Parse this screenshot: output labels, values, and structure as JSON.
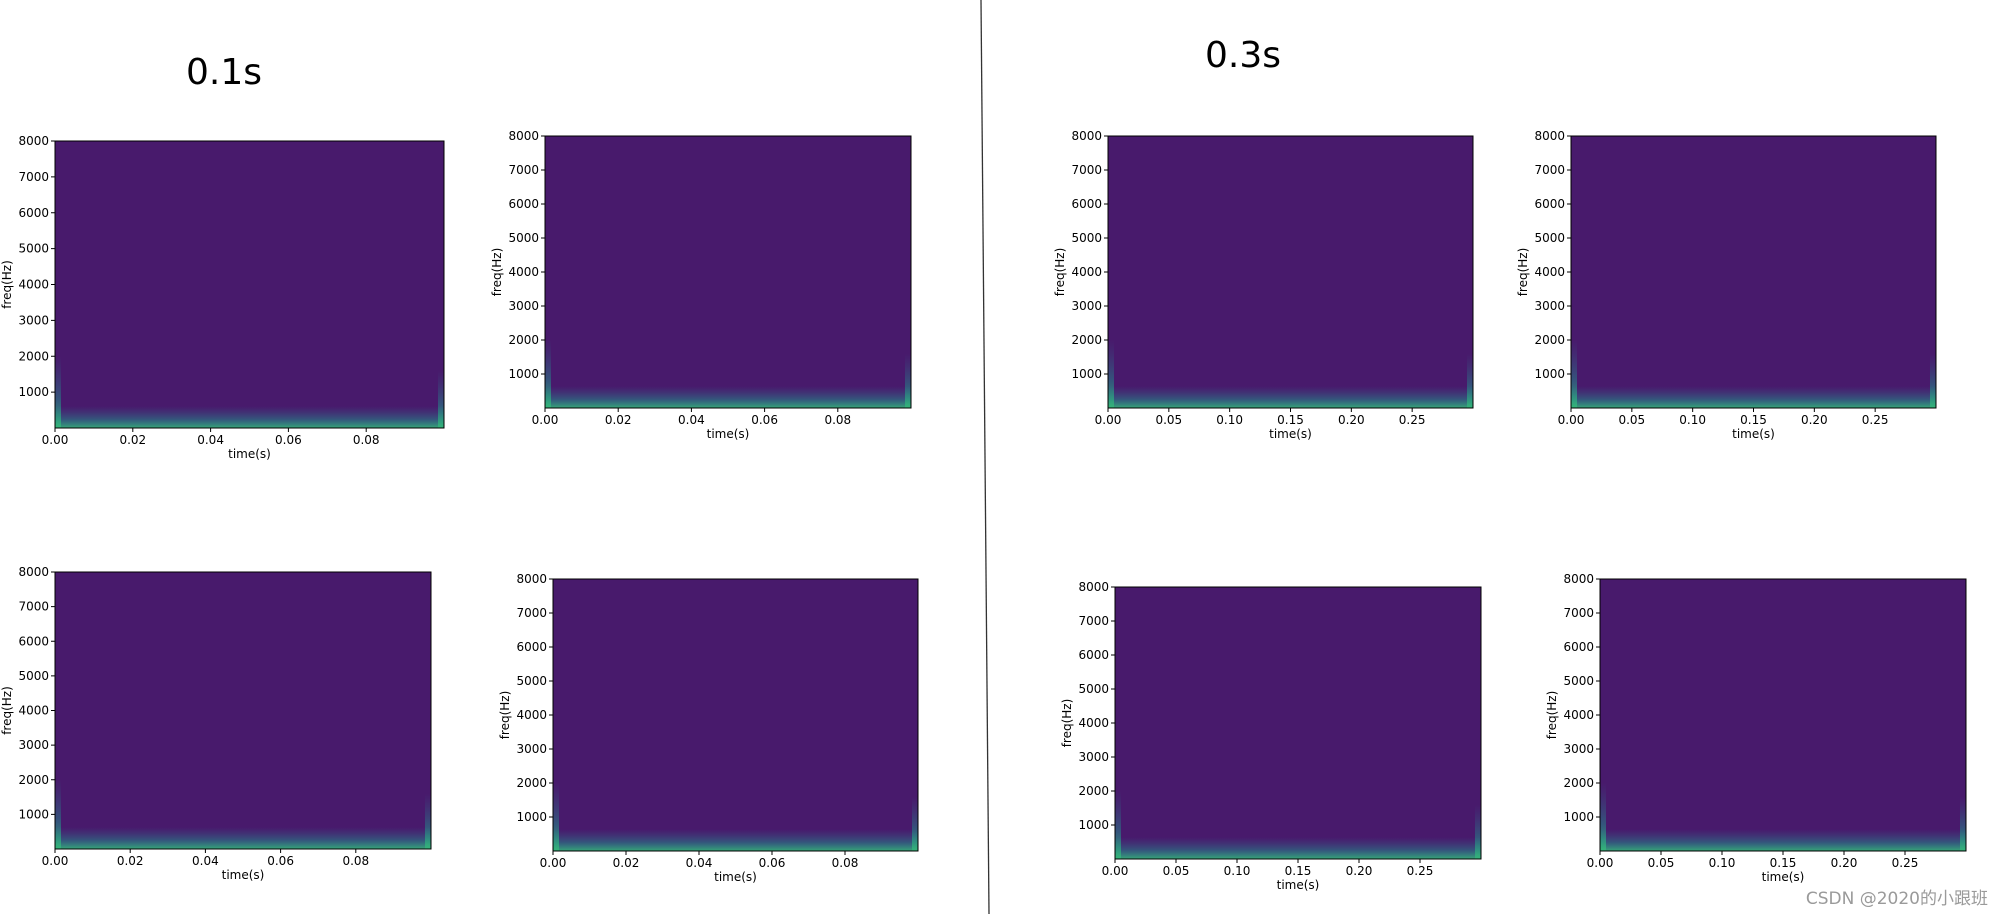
{
  "headers": [
    "0.1s",
    "0.3s"
  ],
  "watermark": "CSDN @2020的小跟班",
  "chart_data": [
    {
      "type": "heatmap",
      "color": "#481a6c",
      "xlabel": "time(s)",
      "ylabel": "freq(Hz)",
      "xlim": [
        0,
        0.1
      ],
      "ylim": [
        0,
        8000
      ],
      "xticks": [
        {
          "value": 0,
          "label": "0.00"
        },
        0.02,
        0.04,
        0.06,
        0.08
      ],
      "yticks": [
        1000,
        2000,
        3000,
        4000,
        5000,
        6000,
        7000,
        8000
      ]
    },
    {
      "type": "heatmap",
      "color": "#481a6c",
      "xlabel": "time(s)",
      "ylabel": "freq(Hz)",
      "xlim": [
        0,
        0.1
      ],
      "ylim": [
        0,
        8000
      ],
      "xticks": [
        {
          "value": 0,
          "label": "0.00"
        },
        0.02,
        0.04,
        0.06,
        0.08
      ],
      "yticks": [
        1000,
        2000,
        3000,
        4000,
        5000,
        6000,
        7000,
        8000
      ]
    },
    {
      "type": "heatmap",
      "color": "#481a6c",
      "xlabel": "time(s)",
      "ylabel": "freq(Hz)",
      "xlim": [
        0,
        0.3
      ],
      "ylim": [
        0,
        8000
      ],
      "xticks": [
        {
          "value": 0,
          "label": "0.00"
        },
        0.05,
        {
          "value": 0.1,
          "label": "0.10"
        },
        0.15,
        {
          "value": 0.2,
          "label": "0.20"
        },
        0.25
      ],
      "yticks": [
        1000,
        2000,
        3000,
        4000,
        5000,
        6000,
        7000,
        8000
      ]
    },
    {
      "type": "heatmap",
      "color": "#481a6c",
      "xlabel": "time(s)",
      "ylabel": "freq(Hz)",
      "xlim": [
        0,
        0.3
      ],
      "ylim": [
        0,
        8000
      ],
      "xticks": [
        {
          "value": 0,
          "label": "0.00"
        },
        0.05,
        {
          "value": 0.1,
          "label": "0.10"
        },
        0.15,
        {
          "value": 0.2,
          "label": "0.20"
        },
        0.25
      ],
      "yticks": [
        1000,
        2000,
        3000,
        4000,
        5000,
        6000,
        7000,
        8000
      ]
    },
    {
      "type": "heatmap",
      "color": "#481a6c",
      "xlabel": "time(s)",
      "ylabel": "freq(Hz)",
      "xlim": [
        0,
        0.1
      ],
      "ylim": [
        0,
        8000
      ],
      "xticks": [
        {
          "value": 0,
          "label": "0.00"
        },
        0.02,
        0.04,
        0.06,
        0.08
      ],
      "yticks": [
        1000,
        2000,
        3000,
        4000,
        5000,
        6000,
        7000,
        8000
      ]
    },
    {
      "type": "heatmap",
      "color": "#481a6c",
      "xlabel": "time(s)",
      "ylabel": "freq(Hz)",
      "xlim": [
        0,
        0.1
      ],
      "ylim": [
        0,
        8000
      ],
      "xticks": [
        {
          "value": 0,
          "label": "0.00"
        },
        0.02,
        0.04,
        0.06,
        0.08
      ],
      "yticks": [
        1000,
        2000,
        3000,
        4000,
        5000,
        6000,
        7000,
        8000
      ]
    },
    {
      "type": "heatmap",
      "color": "#481a6c",
      "xlabel": "time(s)",
      "ylabel": "freq(Hz)",
      "xlim": [
        0,
        0.3
      ],
      "ylim": [
        0,
        8000
      ],
      "xticks": [
        {
          "value": 0,
          "label": "0.00"
        },
        0.05,
        {
          "value": 0.1,
          "label": "0.10"
        },
        0.15,
        {
          "value": 0.2,
          "label": "0.20"
        },
        0.25
      ],
      "yticks": [
        1000,
        2000,
        3000,
        4000,
        5000,
        6000,
        7000,
        8000
      ]
    },
    {
      "type": "heatmap",
      "color": "#481a6c",
      "xlabel": "time(s)",
      "ylabel": "freq(Hz)",
      "xlim": [
        0,
        0.3
      ],
      "ylim": [
        0,
        8000
      ],
      "xticks": [
        {
          "value": 0,
          "label": "0.00"
        },
        0.05,
        {
          "value": 0.1,
          "label": "0.10"
        },
        0.15,
        {
          "value": 0.2,
          "label": "0.20"
        },
        0.25
      ],
      "yticks": [
        1000,
        2000,
        3000,
        4000,
        5000,
        6000,
        7000,
        8000
      ]
    }
  ]
}
